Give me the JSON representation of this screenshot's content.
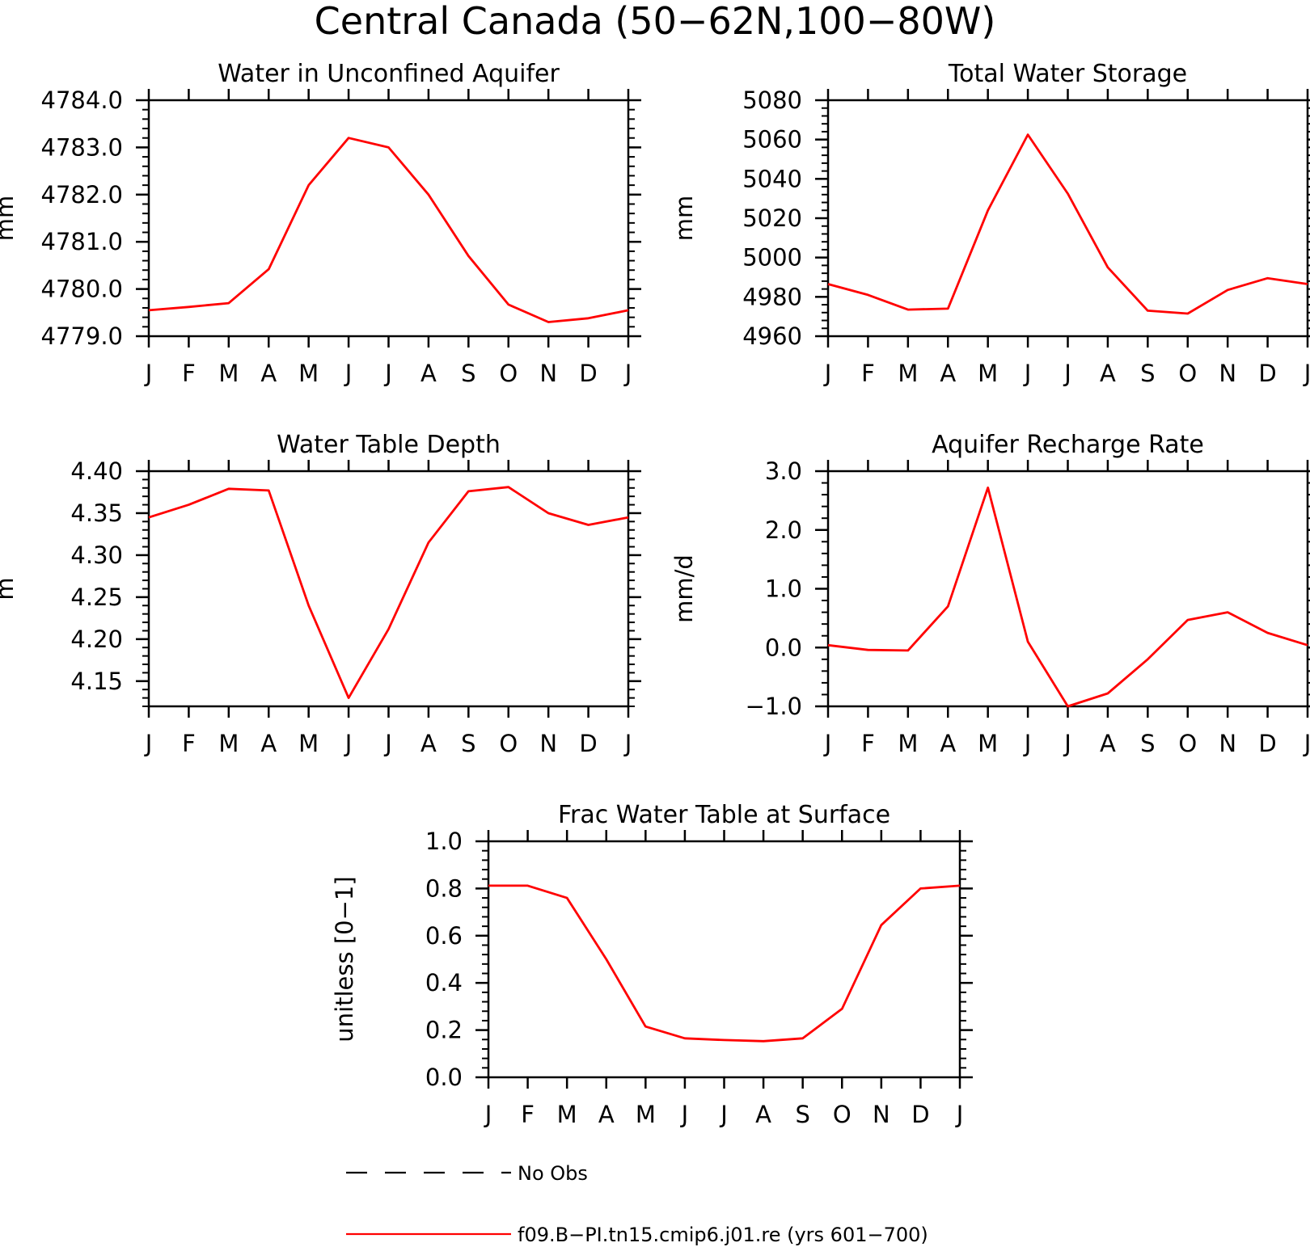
{
  "title": "Central Canada (50−62N,100−80W)",
  "months": [
    "J",
    "F",
    "M",
    "A",
    "M",
    "J",
    "J",
    "A",
    "S",
    "O",
    "N",
    "D",
    "J"
  ],
  "series_color": "#ff0000",
  "chart_data": [
    {
      "type": "line",
      "title": "Water in Unconfined Aquifer",
      "ylabel": "mm",
      "ylim": [
        4779.0,
        4784.0
      ],
      "yticks": [
        4779.0,
        4780.0,
        4781.0,
        4782.0,
        4783.0,
        4784.0
      ],
      "ytick_labels": [
        "4779.0",
        "4780.0",
        "4781.0",
        "4782.0",
        "4783.0",
        "4784.0"
      ],
      "series": [
        {
          "values": [
            4779.55,
            4779.62,
            4779.7,
            4780.42,
            4782.2,
            4783.2,
            4783.0,
            4782.0,
            4780.7,
            4779.67,
            4779.3,
            4779.38,
            4779.55
          ]
        }
      ]
    },
    {
      "type": "line",
      "title": "Total Water Storage",
      "ylabel": "mm",
      "ylim": [
        4960,
        5080
      ],
      "yticks": [
        4960,
        4980,
        5000,
        5020,
        5040,
        5060,
        5080
      ],
      "ytick_labels": [
        "4960",
        "4980",
        "5000",
        "5020",
        "5040",
        "5060",
        "5080"
      ],
      "series": [
        {
          "values": [
            4986.5,
            4981,
            4973.5,
            4974,
            5024,
            5062.5,
            5032.5,
            4995,
            4973,
            4971.5,
            4983.5,
            4989.5,
            4986.5
          ]
        }
      ]
    },
    {
      "type": "line",
      "title": "Water Table Depth",
      "ylabel": "m",
      "ylim": [
        4.12,
        4.4
      ],
      "yticks": [
        4.15,
        4.2,
        4.25,
        4.3,
        4.35,
        4.4
      ],
      "ytick_labels": [
        "4.15",
        "4.20",
        "4.25",
        "4.30",
        "4.35",
        "4.40"
      ],
      "series": [
        {
          "values": [
            4.345,
            4.36,
            4.379,
            4.377,
            4.24,
            4.13,
            4.212,
            4.315,
            4.376,
            4.381,
            4.35,
            4.336,
            4.345
          ]
        }
      ]
    },
    {
      "type": "line",
      "title": "Aquifer Recharge Rate",
      "ylabel": "mm/d",
      "ylim": [
        -1.0,
        3.0
      ],
      "yticks": [
        -1.0,
        0.0,
        1.0,
        2.0,
        3.0
      ],
      "ytick_labels": [
        "−1.0",
        "0.0",
        "1.0",
        "2.0",
        "3.0"
      ],
      "series": [
        {
          "values": [
            0.04,
            -0.04,
            -0.05,
            0.7,
            2.72,
            0.1,
            -1.0,
            -0.78,
            -0.2,
            0.47,
            0.6,
            0.25,
            0.04
          ]
        }
      ]
    },
    {
      "type": "line",
      "title": "Frac Water Table at Surface",
      "ylabel": "unitless [0−1]",
      "ylim": [
        0.0,
        1.0
      ],
      "yticks": [
        0.0,
        0.2,
        0.4,
        0.6,
        0.8,
        1.0
      ],
      "ytick_labels": [
        "0.0",
        "0.2",
        "0.4",
        "0.6",
        "0.8",
        "1.0"
      ],
      "series": [
        {
          "values": [
            0.812,
            0.812,
            0.76,
            0.5,
            0.215,
            0.165,
            0.158,
            0.153,
            0.165,
            0.29,
            0.645,
            0.8,
            0.812
          ]
        }
      ]
    }
  ],
  "legend": [
    {
      "label": "No Obs",
      "style": "dashed",
      "color": "#000000"
    },
    {
      "label": "f09.B−PI.tn15.cmip6.j01.re (yrs 601−700)",
      "style": "solid",
      "color": "#ff0000"
    }
  ]
}
